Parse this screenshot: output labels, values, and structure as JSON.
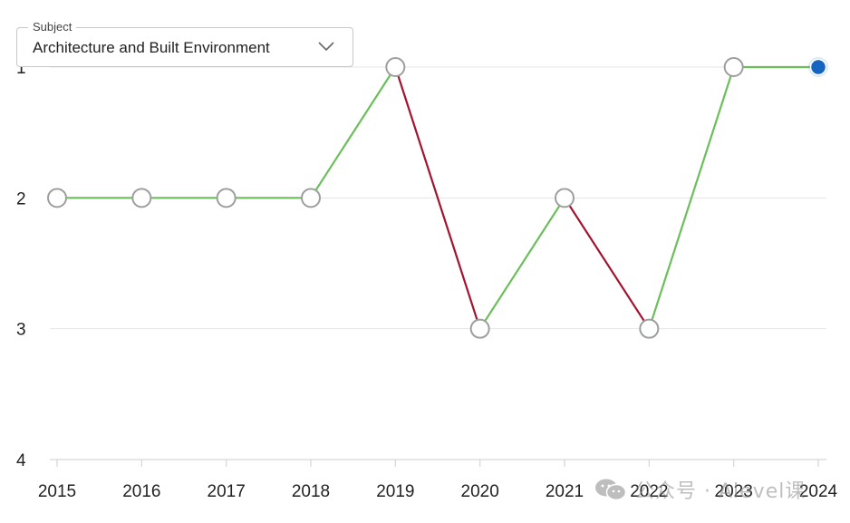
{
  "subject_select": {
    "label": "Subject",
    "value": "Architecture and Built Environment"
  },
  "watermark": {
    "text": "公众号 · Alevel课",
    "icon": "wechat-icon"
  },
  "chart_data": {
    "type": "line",
    "title": "",
    "xlabel": "",
    "ylabel": "",
    "x": [
      "2015",
      "2016",
      "2017",
      "2018",
      "2019",
      "2020",
      "2021",
      "2022",
      "2023",
      "2024"
    ],
    "series": [
      {
        "values": [
          2,
          2,
          2,
          2,
          1,
          3,
          2,
          3,
          1,
          1
        ]
      }
    ],
    "y_ticks": [
      1,
      2,
      3,
      4
    ],
    "ylim": [
      1,
      4
    ],
    "y_inverted": true,
    "grid": true,
    "highlight_last_point": true,
    "colors": {
      "improve_or_same": "#6abf5a",
      "decline": "#a3132f",
      "point_fill": "#ffffff",
      "point_stroke": "#9e9e9e",
      "highlight": "#1565c0",
      "grid": "#e4e4e4",
      "axis": "#d6d6d6",
      "tick_label": "#222222"
    }
  }
}
